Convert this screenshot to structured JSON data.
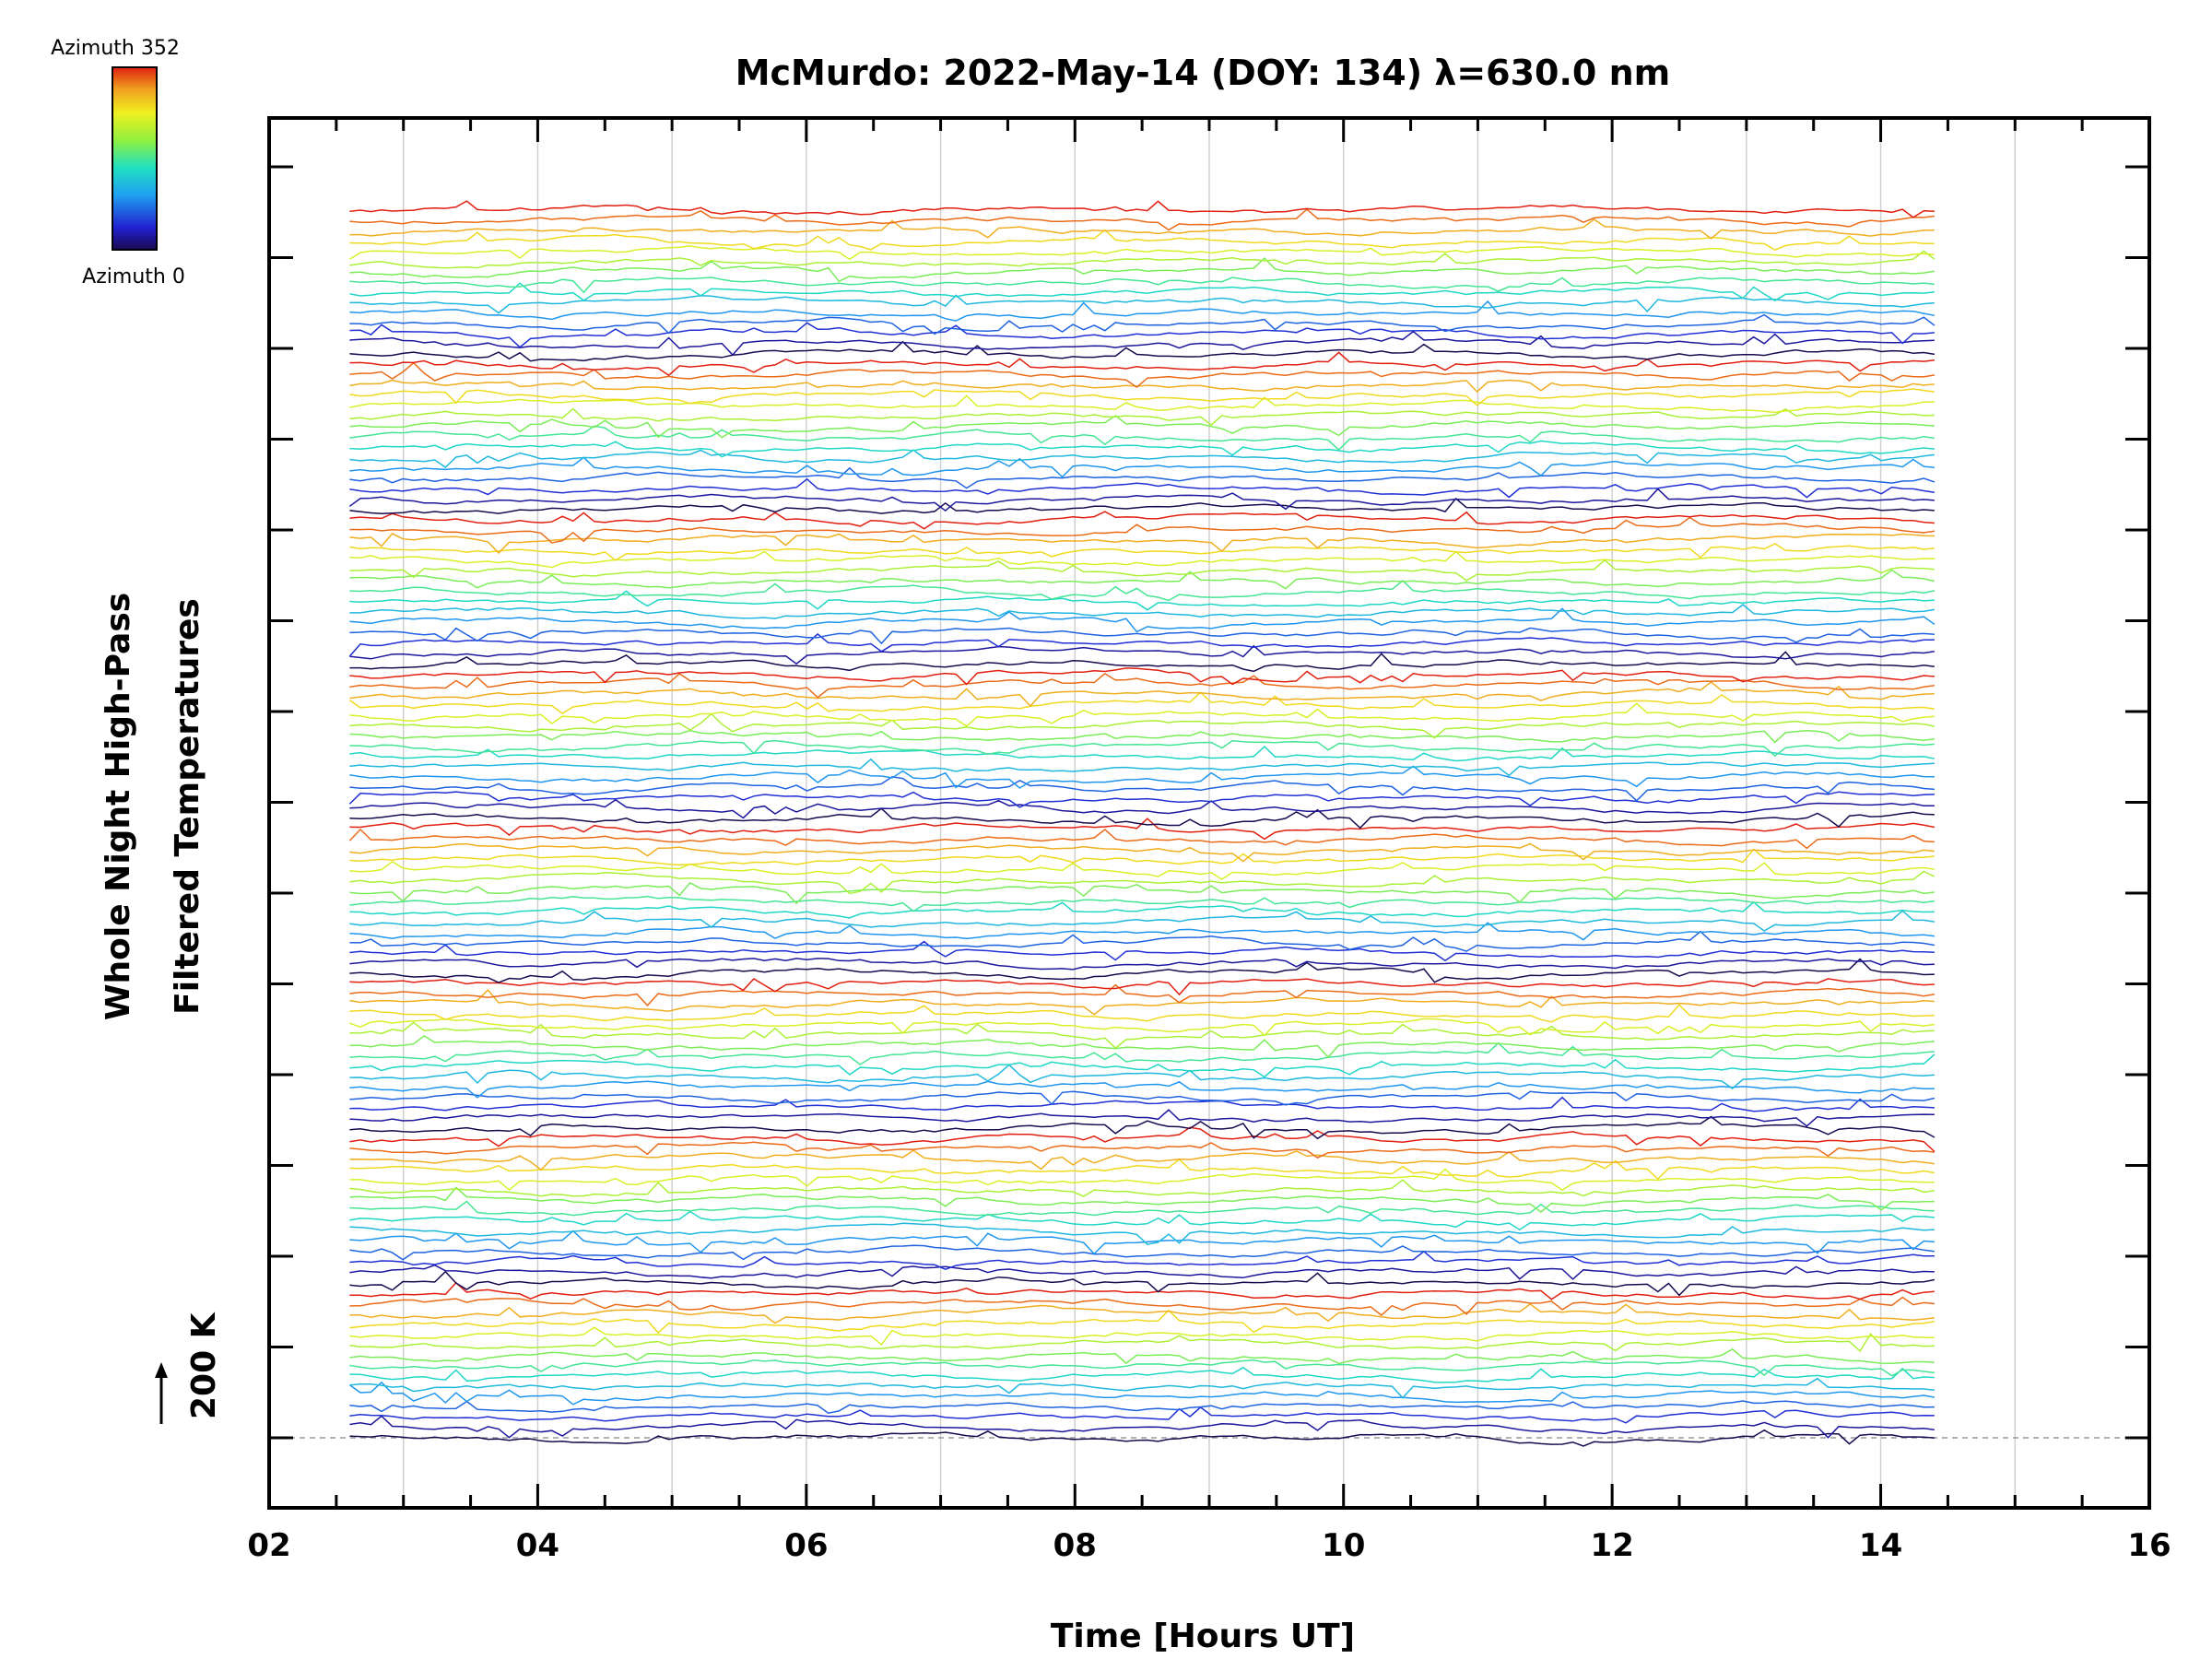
{
  "chart_data": {
    "type": "line",
    "title": "McMurdo: 2022-May-14 (DOY: 134) λ=630.0 nm",
    "xlabel": "Time [Hours UT]",
    "ylabel_line1": "Whole Night High-Pass",
    "ylabel_line2": "Filtered Temperatures",
    "xlim": [
      2,
      16
    ],
    "x_tick_labels": [
      "02",
      "04",
      "06",
      "08",
      "10",
      "12",
      "14",
      "16"
    ],
    "x_tick_values": [
      2,
      4,
      6,
      8,
      10,
      12,
      14,
      16
    ],
    "scale_label": "200 K",
    "colorbar": {
      "label_top": "Azimuth 352",
      "label_bottom": "Azimuth 0",
      "min": 0,
      "max": 352,
      "colormap": "rainbow"
    },
    "data_time_range": [
      2.6,
      14.4
    ],
    "series_groups": 8,
    "series_per_group": 15,
    "grid": true,
    "baseline_dashed": true
  },
  "colors": {
    "frame": "#000000",
    "grid": "#d0d0d0",
    "baseline": "#9a9a9a"
  }
}
